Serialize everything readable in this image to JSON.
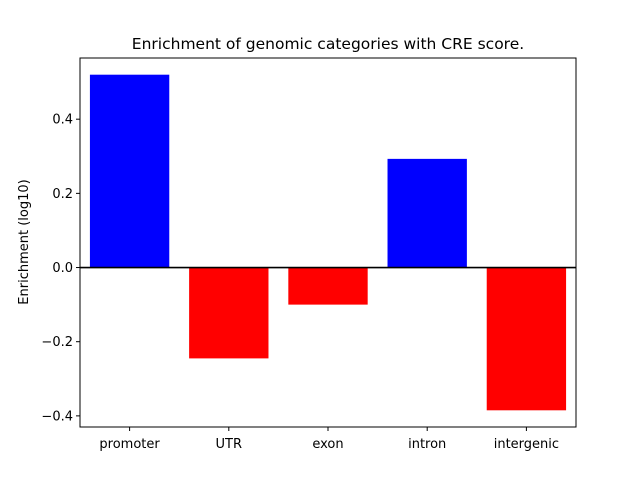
{
  "chart_data": {
    "type": "bar",
    "title": "Enrichment of genomic categories with CRE score.",
    "xlabel": "",
    "ylabel": "Enrichment (log10)",
    "categories": [
      "promoter",
      "UTR",
      "exon",
      "intron",
      "intergenic"
    ],
    "values": [
      0.52,
      -0.245,
      -0.1,
      0.293,
      -0.385
    ],
    "ylim": [
      -0.43,
      0.565
    ],
    "yticks": [
      -0.4,
      -0.2,
      0.0,
      0.2,
      0.4
    ],
    "ytick_labels": [
      "−0.4",
      "−0.2",
      "0.0",
      "0.2",
      "0.4"
    ],
    "positive_color": "#0000ff",
    "negative_color": "#ff0000",
    "zero_line_color": "#000000",
    "grid": false
  }
}
